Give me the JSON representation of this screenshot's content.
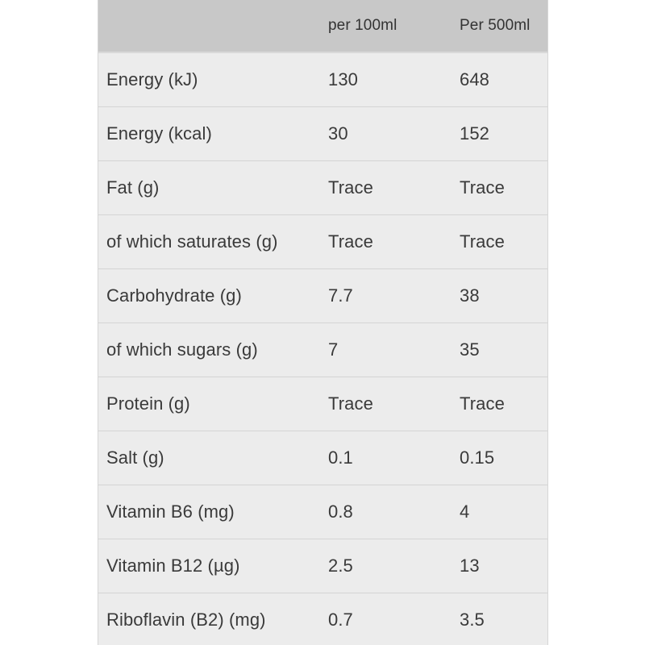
{
  "table": {
    "headers": [
      "",
      "per 100ml",
      "Per 500ml"
    ],
    "rows": [
      {
        "nutrient": "Energy (kJ)",
        "per_100ml": "130",
        "per_500ml": "648"
      },
      {
        "nutrient": "Energy (kcal)",
        "per_100ml": "30",
        "per_500ml": "152"
      },
      {
        "nutrient": "Fat (g)",
        "per_100ml": "Trace",
        "per_500ml": "Trace"
      },
      {
        "nutrient": "of which saturates (g)",
        "per_100ml": "Trace",
        "per_500ml": "Trace"
      },
      {
        "nutrient": "Carbohydrate (g)",
        "per_100ml": "7.7",
        "per_500ml": "38"
      },
      {
        "nutrient": "of which sugars (g)",
        "per_100ml": "7",
        "per_500ml": "35"
      },
      {
        "nutrient": "Protein (g)",
        "per_100ml": "Trace",
        "per_500ml": "Trace"
      },
      {
        "nutrient": "Salt (g)",
        "per_100ml": "0.1",
        "per_500ml": "0.15"
      },
      {
        "nutrient": "Vitamin B6 (mg)",
        "per_100ml": "0.8",
        "per_500ml": "4"
      },
      {
        "nutrient": "Vitamin B12 (µg)",
        "per_100ml": "2.5",
        "per_500ml": "13"
      },
      {
        "nutrient": "Riboflavin (B2) (mg)",
        "per_100ml": "0.7",
        "per_500ml": "3.5"
      }
    ]
  },
  "colors": {
    "header_background": "#c8c8c8",
    "row_background": "#ececec",
    "divider": "#d4d4d4",
    "text": "#3a3a3a"
  }
}
